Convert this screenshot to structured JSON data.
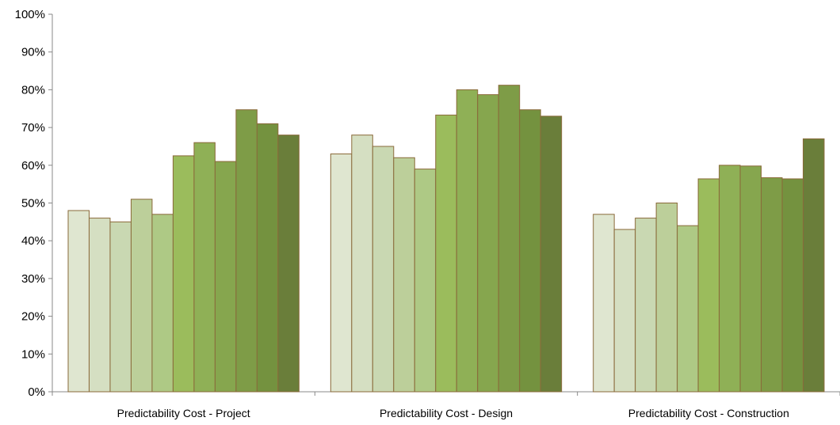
{
  "chart_data": {
    "type": "bar",
    "categories": [
      "Predictability Cost  - Project",
      "Predictability Cost  - Design",
      "Predictability Cost  - Construction"
    ],
    "y_tick_labels": [
      "0%",
      "10%",
      "20%",
      "30%",
      "40%",
      "50%",
      "60%",
      "70%",
      "80%",
      "90%",
      "100%"
    ],
    "ylim": [
      0,
      100
    ],
    "grid": false,
    "legend": "none",
    "bar_stroke_color": "#8a6a3a",
    "series": [
      {
        "color": "#dfe6d0",
        "values": [
          48,
          63,
          47
        ]
      },
      {
        "color": "#d5dfc2",
        "values": [
          46,
          68,
          43
        ]
      },
      {
        "color": "#c9d8b2",
        "values": [
          45,
          65,
          46
        ]
      },
      {
        "color": "#bccf9a",
        "values": [
          51,
          62,
          50
        ]
      },
      {
        "color": "#aec985",
        "values": [
          47,
          59,
          44
        ]
      },
      {
        "color": "#9bbc5c",
        "values": [
          62.5,
          73.3,
          56.4
        ]
      },
      {
        "color": "#8fb056",
        "values": [
          66,
          80,
          60
        ]
      },
      {
        "color": "#86a64e",
        "values": [
          61,
          78.7,
          59.8
        ]
      },
      {
        "color": "#7e9c47",
        "values": [
          74.7,
          81.2,
          56.7
        ]
      },
      {
        "color": "#74923f",
        "values": [
          71,
          74.7,
          56.4
        ]
      },
      {
        "color": "#6a7e3a",
        "values": [
          68,
          73,
          67
        ]
      }
    ]
  }
}
